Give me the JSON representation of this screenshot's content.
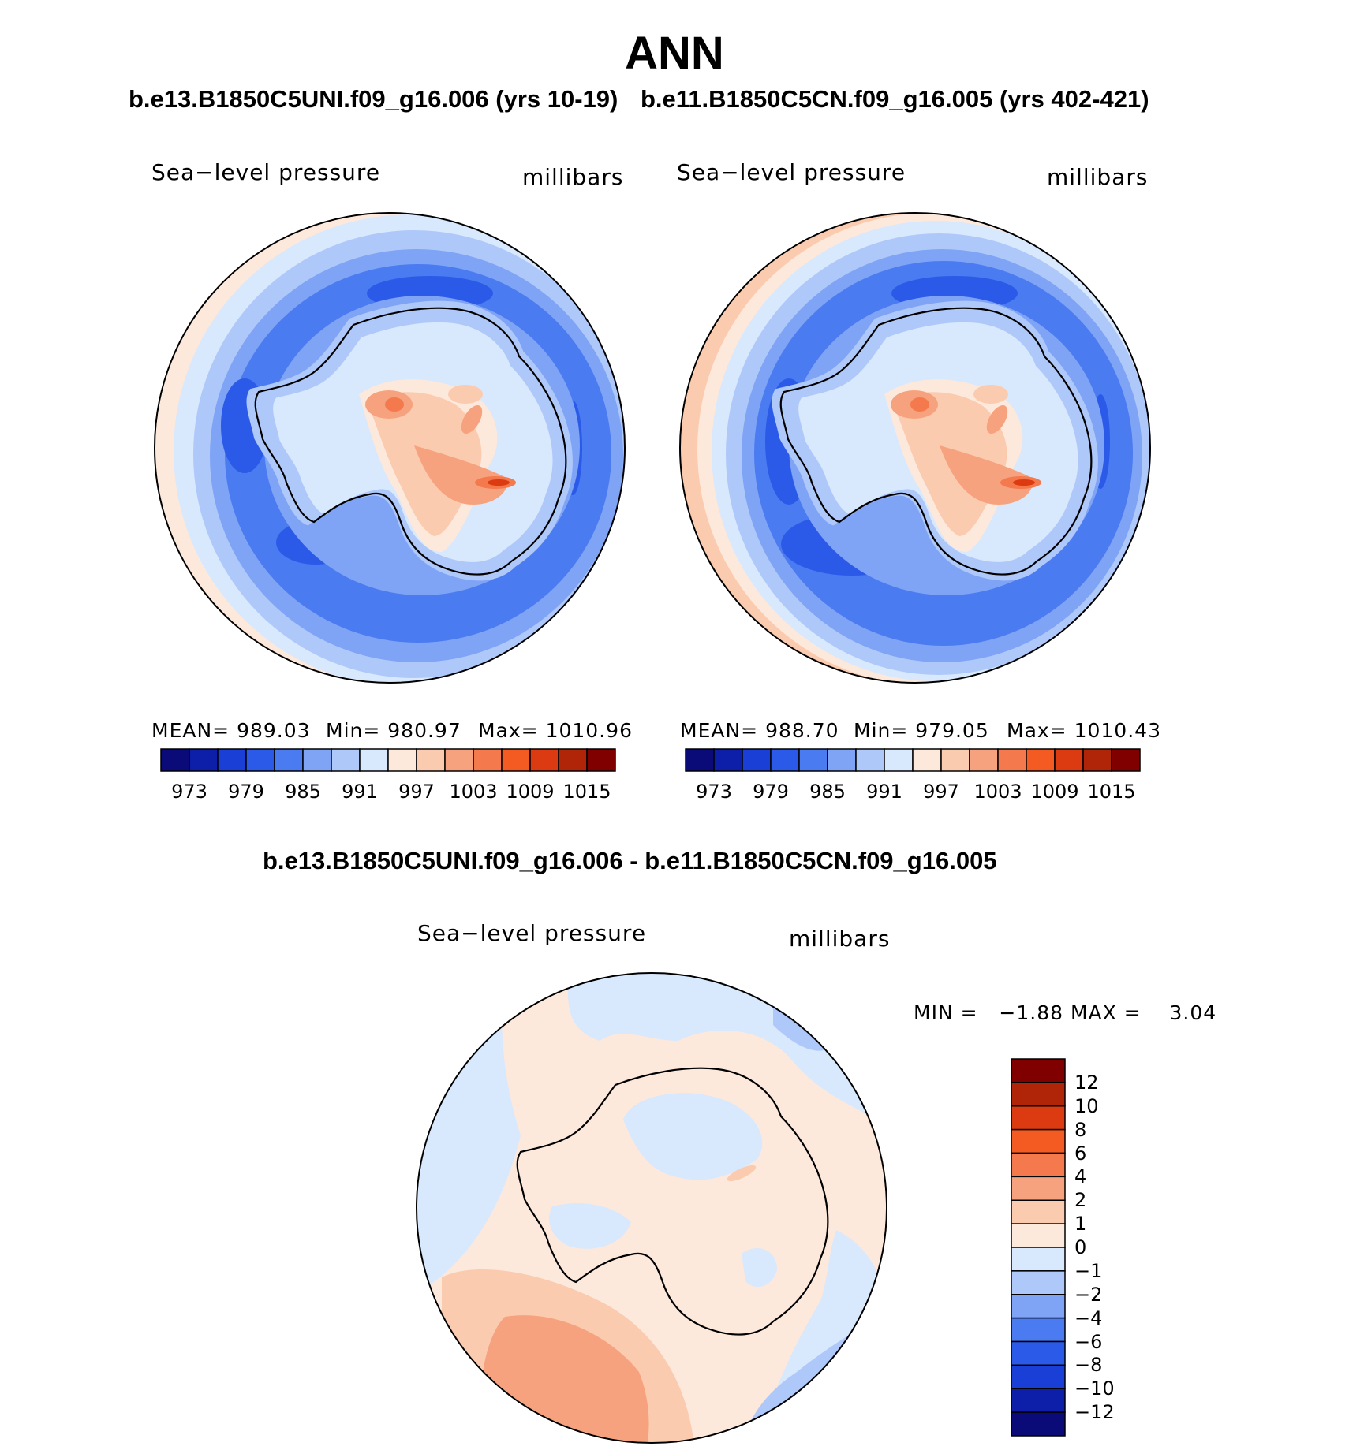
{
  "title": "ANN",
  "case_left": "b.e13.B1850C5UNI.f09_g16.006 (yrs 10-19)",
  "case_right": "b.e11.B1850C5CN.f09_g16.005 (yrs 402-421)",
  "diff_title": "b.e13.B1850C5UNI.f09_g16.006 - b.e11.B1850C5CN.f09_g16.005",
  "panels": [
    {
      "variable": "Sea−level pressure",
      "units": "millibars",
      "mean_label": "MEAN=",
      "mean": "989.03",
      "min_label": "Min=",
      "min": "980.97",
      "max_label": "Max=",
      "max": "1010.96"
    },
    {
      "variable": "Sea−level pressure",
      "units": "millibars",
      "mean_label": "MEAN=",
      "mean": "988.70",
      "min_label": "Min=",
      "min": "979.05",
      "max_label": "Max=",
      "max": "1010.43"
    }
  ],
  "diff_panel": {
    "variable": "Sea−level pressure",
    "units": "millibars",
    "min_label": "MIN =",
    "min": "−1.88",
    "max_label": "MAX =",
    "max": "3.04"
  },
  "abs_colorbar": {
    "colors": [
      "#0a0a78",
      "#0d1fa8",
      "#1a3fd6",
      "#2b5ae8",
      "#4a7bf0",
      "#7fa3f5",
      "#aec8fa",
      "#d8e8fd",
      "#fde9dc",
      "#fbcbb0",
      "#f7a27e",
      "#f47a4e",
      "#f45b22",
      "#dc3a10",
      "#b02408",
      "#800000"
    ],
    "tick_labels": [
      "973",
      "979",
      "985",
      "991",
      "997",
      "1003",
      "1009",
      "1015"
    ]
  },
  "diff_colorbar": {
    "colors": [
      "#800000",
      "#b02408",
      "#dc3a10",
      "#f45b22",
      "#f47a4e",
      "#f7a27e",
      "#fbcbb0",
      "#fde9dc",
      "#d8e8fd",
      "#aec8fa",
      "#7fa3f5",
      "#4a7bf0",
      "#2b5ae8",
      "#1a3fd6",
      "#0d1fa8",
      "#0a0a78"
    ],
    "tick_labels": [
      "12",
      "10",
      "8",
      "6",
      "4",
      "2",
      "1",
      "0",
      "−1",
      "−2",
      "−4",
      "−6",
      "−8",
      "−10",
      "−12"
    ]
  }
}
